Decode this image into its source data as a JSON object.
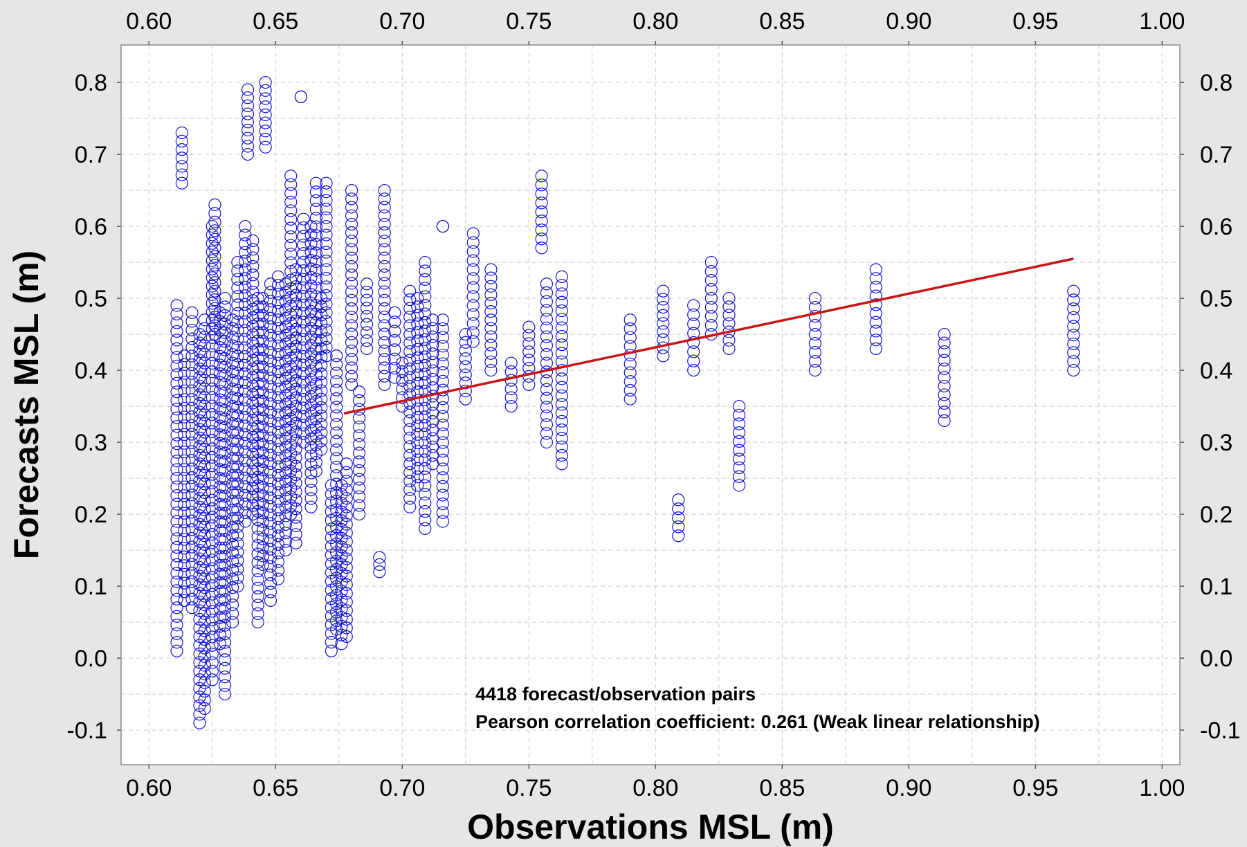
{
  "chart_data": {
    "type": "scatter",
    "xlabel": "Observations MSL (m)",
    "ylabel": "Forecasts MSL (m)",
    "xlim": [
      0.589,
      1.007
    ],
    "ylim": [
      -0.148,
      0.852
    ],
    "xticks": [
      "0.60",
      "0.65",
      "0.70",
      "0.75",
      "0.80",
      "0.85",
      "0.90",
      "0.95",
      "1.00"
    ],
    "yticks": [
      "-0.1",
      "0.0",
      "0.1",
      "0.2",
      "0.3",
      "0.4",
      "0.5",
      "0.6",
      "0.7",
      "0.8"
    ],
    "grid": true,
    "colors": {
      "points": "#1414d2",
      "fit_line": "#c81414",
      "background": "#e6e6e6",
      "plot_area": "#ffffff",
      "grid": "#cccccc"
    },
    "annotations": [
      "4418 forecast/observation pairs",
      "Pearson correlation coefficient:  0.261 (Weak linear relationship)"
    ],
    "fit_line": {
      "x": [
        0.677,
        0.965
      ],
      "y": [
        0.34,
        0.555
      ]
    },
    "columns": [
      {
        "x": 0.611,
        "y": [
          0.01,
          0.49
        ]
      },
      {
        "x": 0.613,
        "y": [
          0.66,
          0.73
        ]
      },
      {
        "x": 0.614,
        "y": [
          0.08,
          0.42
        ]
      },
      {
        "x": 0.617,
        "y": [
          0.07,
          0.48
        ]
      },
      {
        "x": 0.62,
        "y": [
          -0.09,
          0.45
        ]
      },
      {
        "x": 0.622,
        "y": [
          -0.07,
          0.47
        ]
      },
      {
        "x": 0.625,
        "y": [
          -0.03,
          0.6
        ]
      },
      {
        "x": 0.626,
        "y": [
          0.45,
          0.63
        ]
      },
      {
        "x": 0.628,
        "y": [
          0.02,
          0.48
        ]
      },
      {
        "x": 0.63,
        "y": [
          -0.05,
          0.5
        ]
      },
      {
        "x": 0.633,
        "y": [
          0.05,
          0.47
        ]
      },
      {
        "x": 0.635,
        "y": [
          0.1,
          0.55
        ]
      },
      {
        "x": 0.638,
        "y": [
          0.19,
          0.6
        ]
      },
      {
        "x": 0.639,
        "y": [
          0.7,
          0.79
        ]
      },
      {
        "x": 0.641,
        "y": [
          0.2,
          0.58
        ]
      },
      {
        "x": 0.643,
        "y": [
          0.05,
          0.5
        ]
      },
      {
        "x": 0.645,
        "y": [
          0.13,
          0.5
        ]
      },
      {
        "x": 0.646,
        "y": [
          0.71,
          0.8
        ]
      },
      {
        "x": 0.648,
        "y": [
          0.08,
          0.52
        ]
      },
      {
        "x": 0.651,
        "y": [
          0.11,
          0.53
        ]
      },
      {
        "x": 0.654,
        "y": [
          0.15,
          0.52
        ]
      },
      {
        "x": 0.656,
        "y": [
          0.2,
          0.67
        ]
      },
      {
        "x": 0.658,
        "y": [
          0.16,
          0.54
        ]
      },
      {
        "x": 0.66,
        "y": [
          0.78,
          0.78
        ]
      },
      {
        "x": 0.661,
        "y": [
          0.3,
          0.61
        ]
      },
      {
        "x": 0.664,
        "y": [
          0.21,
          0.6
        ]
      },
      {
        "x": 0.666,
        "y": [
          0.26,
          0.66
        ]
      },
      {
        "x": 0.668,
        "y": [
          0.29,
          0.5
        ]
      },
      {
        "x": 0.67,
        "y": [
          0.42,
          0.66
        ]
      },
      {
        "x": 0.672,
        "y": [
          0.01,
          0.24
        ]
      },
      {
        "x": 0.674,
        "y": [
          0.04,
          0.42
        ]
      },
      {
        "x": 0.676,
        "y": [
          0.02,
          0.24
        ]
      },
      {
        "x": 0.678,
        "y": [
          0.03,
          0.27
        ]
      },
      {
        "x": 0.68,
        "y": [
          0.38,
          0.65
        ]
      },
      {
        "x": 0.683,
        "y": [
          0.2,
          0.37
        ]
      },
      {
        "x": 0.686,
        "y": [
          0.43,
          0.52
        ]
      },
      {
        "x": 0.691,
        "y": [
          0.12,
          0.14
        ]
      },
      {
        "x": 0.693,
        "y": [
          0.38,
          0.65
        ]
      },
      {
        "x": 0.697,
        "y": [
          0.39,
          0.48
        ]
      },
      {
        "x": 0.7,
        "y": [
          0.35,
          0.41
        ]
      },
      {
        "x": 0.703,
        "y": [
          0.21,
          0.51
        ]
      },
      {
        "x": 0.706,
        "y": [
          0.24,
          0.5
        ]
      },
      {
        "x": 0.709,
        "y": [
          0.18,
          0.55
        ]
      },
      {
        "x": 0.712,
        "y": [
          0.27,
          0.47
        ]
      },
      {
        "x": 0.716,
        "y": [
          0.19,
          0.47
        ]
      },
      {
        "x": 0.716,
        "y": [
          0.6,
          0.6
        ]
      },
      {
        "x": 0.725,
        "y": [
          0.36,
          0.45
        ]
      },
      {
        "x": 0.728,
        "y": [
          0.44,
          0.59
        ]
      },
      {
        "x": 0.735,
        "y": [
          0.4,
          0.54
        ]
      },
      {
        "x": 0.743,
        "y": [
          0.35,
          0.41
        ]
      },
      {
        "x": 0.75,
        "y": [
          0.38,
          0.46
        ]
      },
      {
        "x": 0.755,
        "y": [
          0.57,
          0.67
        ]
      },
      {
        "x": 0.757,
        "y": [
          0.3,
          0.52
        ]
      },
      {
        "x": 0.763,
        "y": [
          0.27,
          0.53
        ]
      },
      {
        "x": 0.79,
        "y": [
          0.36,
          0.47
        ]
      },
      {
        "x": 0.803,
        "y": [
          0.42,
          0.51
        ]
      },
      {
        "x": 0.809,
        "y": [
          0.17,
          0.22
        ]
      },
      {
        "x": 0.815,
        "y": [
          0.4,
          0.49
        ]
      },
      {
        "x": 0.822,
        "y": [
          0.45,
          0.55
        ]
      },
      {
        "x": 0.829,
        "y": [
          0.43,
          0.5
        ]
      },
      {
        "x": 0.833,
        "y": [
          0.24,
          0.35
        ]
      },
      {
        "x": 0.863,
        "y": [
          0.4,
          0.5
        ]
      },
      {
        "x": 0.887,
        "y": [
          0.43,
          0.54
        ]
      },
      {
        "x": 0.914,
        "y": [
          0.33,
          0.45
        ]
      },
      {
        "x": 0.965,
        "y": [
          0.4,
          0.51
        ]
      }
    ]
  }
}
